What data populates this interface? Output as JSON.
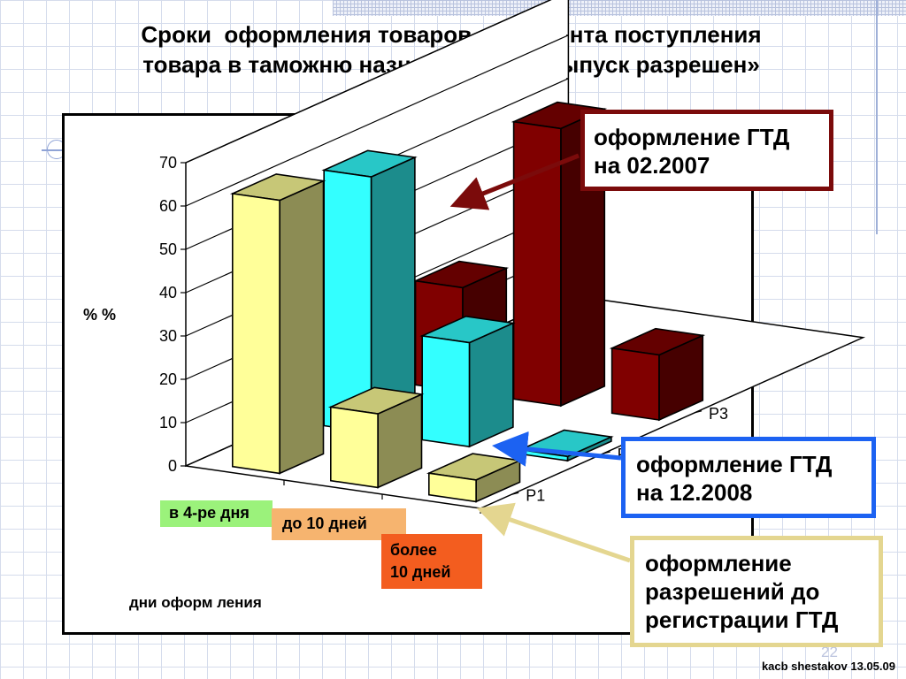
{
  "slide": {
    "title_lines": [
      "Сроки  оформления товаров от момента поступления",
      "товара в таможню назначения до «выпуск разрешен»"
    ],
    "page_number": "22",
    "footer": "kacb shestakov 13.05.09"
  },
  "callouts": {
    "p3": {
      "lines": [
        "оформление ГТД",
        "на 02.2007"
      ],
      "color": "#7b0b0b"
    },
    "p2": {
      "lines": [
        "оформление ГТД",
        "на 12.2008"
      ],
      "color": "#1c62f2"
    },
    "p1": {
      "lines": [
        "оформление",
        "разрешений до",
        "регистрации ГТД"
      ],
      "color": "#e4d690"
    }
  },
  "category_labels": {
    "cat1": {
      "text": "в 4-ре дня",
      "color": "#9bf27b"
    },
    "cat2": {
      "text": "до 10 дней",
      "color": "#f6b46f"
    },
    "cat3": {
      "lines": [
        "более",
        "10 дней"
      ],
      "color": "#f35d1f"
    }
  },
  "chart_data": {
    "type": "bar",
    "variant": "3d-grouped-depth",
    "categories": [
      "в 4-ре дня",
      "до 10 дней",
      "более 10 дней"
    ],
    "series": [
      {
        "name": "Р1",
        "values": [
          63,
          17,
          5
        ],
        "color": "#ffff99"
      },
      {
        "name": "Р2",
        "values": [
          59,
          24,
          1
        ],
        "color": "#33ffff"
      },
      {
        "name": "Р3",
        "values": [
          24,
          64,
          15
        ],
        "color": "#800000"
      }
    ],
    "xlabel": "дни оформ ления",
    "ylabel": "% %",
    "ylim": [
      0,
      70
    ],
    "yticks": [
      0,
      10,
      20,
      30,
      40,
      50,
      60,
      70
    ],
    "grid": true,
    "legend": "depth-axis"
  }
}
